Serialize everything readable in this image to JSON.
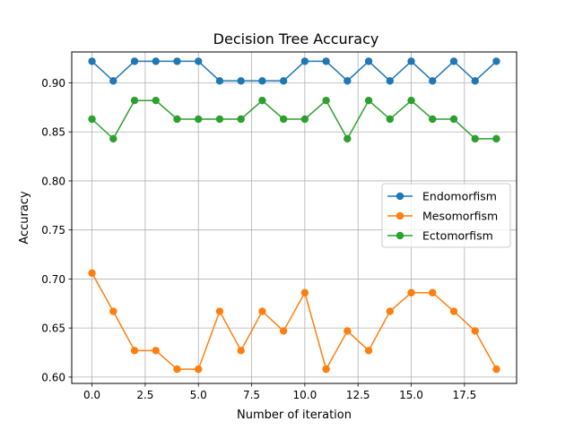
{
  "chart_data": {
    "type": "line",
    "title": "Decision Tree Accuracy",
    "xlabel": "Number of iteration",
    "ylabel": "Accuracy",
    "x": [
      0,
      1,
      2,
      3,
      4,
      5,
      6,
      7,
      8,
      9,
      10,
      11,
      12,
      13,
      14,
      15,
      16,
      17,
      18,
      19
    ],
    "xlim": [
      -0.95,
      19.95
    ],
    "ylim": [
      0.5935,
      0.9315
    ],
    "x_ticks": [
      0,
      2.5,
      5,
      7.5,
      10,
      12.5,
      15,
      17.5
    ],
    "x_tick_labels": [
      "0.0",
      "2.5",
      "5.0",
      "7.5",
      "10.0",
      "12.5",
      "15.0",
      "17.5"
    ],
    "y_ticks": [
      0.6,
      0.65,
      0.7,
      0.75,
      0.8,
      0.85,
      0.9
    ],
    "y_tick_labels": [
      "0.60",
      "0.65",
      "0.70",
      "0.75",
      "0.80",
      "0.85",
      "0.90"
    ],
    "grid": true,
    "legend_position": "center-right",
    "series": [
      {
        "name": "Endomorfism",
        "color": "#1f77b4",
        "values": [
          0.922,
          0.902,
          0.922,
          0.922,
          0.922,
          0.922,
          0.902,
          0.902,
          0.902,
          0.902,
          0.922,
          0.922,
          0.902,
          0.922,
          0.902,
          0.922,
          0.902,
          0.922,
          0.902,
          0.922
        ]
      },
      {
        "name": "Mesomorfism",
        "color": "#ff7f0e",
        "values": [
          0.706,
          0.667,
          0.627,
          0.627,
          0.608,
          0.608,
          0.667,
          0.627,
          0.667,
          0.647,
          0.686,
          0.608,
          0.647,
          0.627,
          0.667,
          0.686,
          0.686,
          0.667,
          0.647,
          0.608
        ]
      },
      {
        "name": "Ectomorfism",
        "color": "#2ca02c",
        "values": [
          0.863,
          0.843,
          0.882,
          0.882,
          0.863,
          0.863,
          0.863,
          0.863,
          0.882,
          0.863,
          0.863,
          0.882,
          0.843,
          0.882,
          0.863,
          0.882,
          0.863,
          0.863,
          0.843,
          0.843
        ]
      }
    ]
  }
}
